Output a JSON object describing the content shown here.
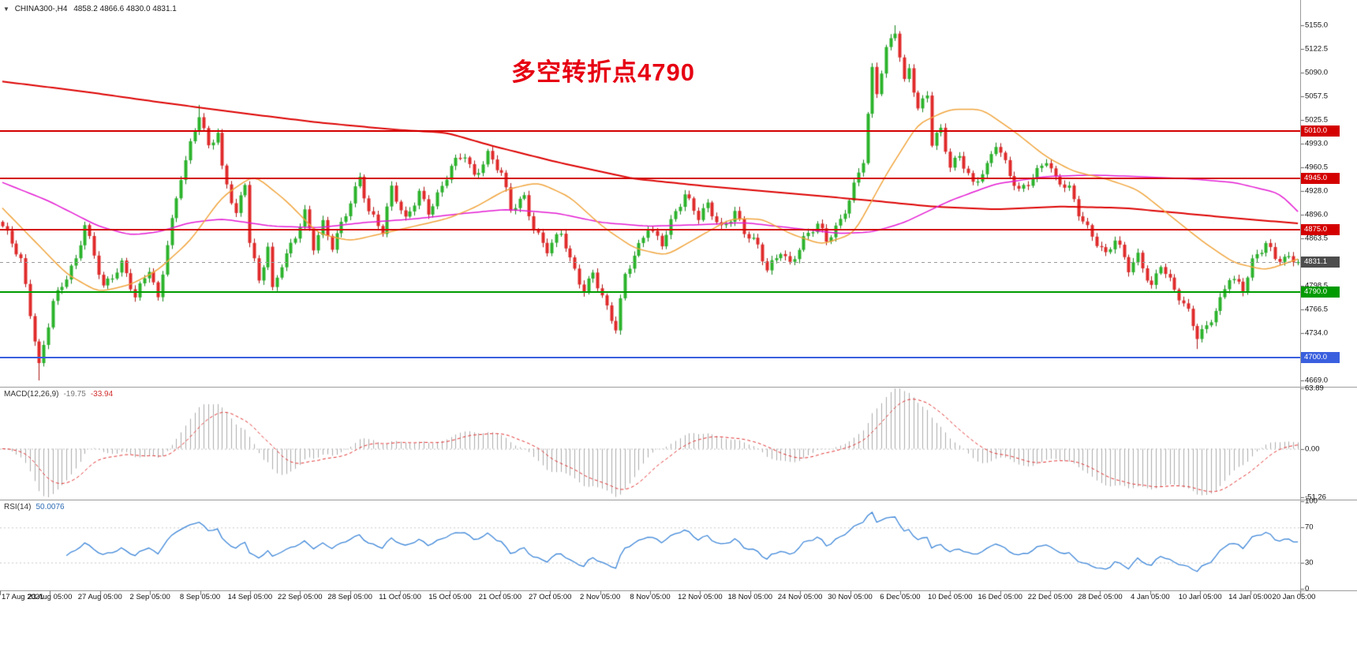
{
  "title_bar": {
    "symbol": "CHINA300-,H4",
    "ohlc": "4858.2 4866.6 4830.0 4831.1"
  },
  "icons": {
    "chart_marker": "▼"
  },
  "annotation": {
    "text": "多空转折点4790",
    "color": "#e60012"
  },
  "indicators": {
    "macd": {
      "name": "MACD(12,26,9)",
      "value_main": "-19.75",
      "value_signal": "-33.94"
    },
    "rsi": {
      "name": "RSI(14)",
      "value": "50.0076"
    }
  },
  "chart_data": {
    "type": "candlestick",
    "symbol": "CHINA300-",
    "timeframe": "H4",
    "current": {
      "open": 4858.2,
      "high": 4866.6,
      "low": 4830.0,
      "close": 4831.1
    },
    "price_axis": {
      "max": 5155.0,
      "min": 4669.0,
      "ticks": [
        "5155.0",
        "5122.5",
        "5090.0",
        "5057.5",
        "5025.5",
        "4993.0",
        "4960.5",
        "4928.0",
        "4896.0",
        "4863.5",
        "4831.0",
        "4798.5",
        "4766.5",
        "4734.0",
        "4701.5",
        "4669.0"
      ]
    },
    "levels": [
      {
        "price": 5010.0,
        "label": "5010.0",
        "color": "#d40000",
        "type": "resistance"
      },
      {
        "price": 4945.0,
        "label": "4945.0",
        "color": "#d40000",
        "type": "resistance"
      },
      {
        "price": 4875.0,
        "label": "4875.0",
        "color": "#d40000",
        "type": "resistance"
      },
      {
        "price": 4790.0,
        "label": "4790.0",
        "color": "#009b00",
        "type": "support"
      },
      {
        "price": 4700.0,
        "label": "4700.0",
        "color": "#3a5fde",
        "type": "support"
      }
    ],
    "current_price": {
      "value": 4831.1,
      "label": "4831.1",
      "badge_color": "#4d4d4d"
    },
    "candles": {
      "count": 284,
      "close_waypoints": [
        [
          0,
          4880
        ],
        [
          4,
          4830
        ],
        [
          8,
          4690
        ],
        [
          11,
          4780
        ],
        [
          16,
          4830
        ],
        [
          18,
          4880
        ],
        [
          22,
          4800
        ],
        [
          26,
          4830
        ],
        [
          29,
          4780
        ],
        [
          32,
          4820
        ],
        [
          34,
          4780
        ],
        [
          36,
          4860
        ],
        [
          39,
          4950
        ],
        [
          43,
          5030
        ],
        [
          45,
          4985
        ],
        [
          47,
          5010
        ],
        [
          48,
          4960
        ],
        [
          51,
          4900
        ],
        [
          53,
          4940
        ],
        [
          54,
          4860
        ],
        [
          56,
          4800
        ],
        [
          58,
          4850
        ],
        [
          59,
          4790
        ],
        [
          61,
          4830
        ],
        [
          64,
          4870
        ],
        [
          66,
          4900
        ],
        [
          68,
          4850
        ],
        [
          70,
          4880
        ],
        [
          72,
          4850
        ],
        [
          75,
          4900
        ],
        [
          78,
          4950
        ],
        [
          80,
          4900
        ],
        [
          83,
          4870
        ],
        [
          85,
          4930
        ],
        [
          88,
          4890
        ],
        [
          91,
          4930
        ],
        [
          93,
          4900
        ],
        [
          96,
          4930
        ],
        [
          98,
          4960
        ],
        [
          101,
          4980
        ],
        [
          103,
          4950
        ],
        [
          106,
          4980
        ],
        [
          109,
          4950
        ],
        [
          111,
          4900
        ],
        [
          114,
          4920
        ],
        [
          116,
          4880
        ],
        [
          119,
          4850
        ],
        [
          122,
          4870
        ],
        [
          124,
          4830
        ],
        [
          127,
          4790
        ],
        [
          129,
          4820
        ],
        [
          132,
          4770
        ],
        [
          134,
          4740
        ],
        [
          136,
          4810
        ],
        [
          139,
          4850
        ],
        [
          141,
          4880
        ],
        [
          144,
          4860
        ],
        [
          147,
          4900
        ],
        [
          149,
          4920
        ],
        [
          152,
          4890
        ],
        [
          154,
          4910
        ],
        [
          157,
          4880
        ],
        [
          160,
          4900
        ],
        [
          162,
          4870
        ],
        [
          165,
          4850
        ],
        [
          167,
          4820
        ],
        [
          170,
          4850
        ],
        [
          172,
          4830
        ],
        [
          175,
          4860
        ],
        [
          178,
          4880
        ],
        [
          180,
          4860
        ],
        [
          183,
          4890
        ],
        [
          185,
          4920
        ],
        [
          188,
          4970
        ],
        [
          190,
          5090
        ],
        [
          191,
          5060
        ],
        [
          193,
          5120
        ],
        [
          195,
          5150
        ],
        [
          197,
          5080
        ],
        [
          198,
          5100
        ],
        [
          200,
          5040
        ],
        [
          202,
          5060
        ],
        [
          203,
          4990
        ],
        [
          205,
          5010
        ],
        [
          207,
          4960
        ],
        [
          209,
          4980
        ],
        [
          212,
          4940
        ],
        [
          215,
          4960
        ],
        [
          217,
          4990
        ],
        [
          220,
          4950
        ],
        [
          222,
          4930
        ],
        [
          225,
          4950
        ],
        [
          228,
          4970
        ],
        [
          230,
          4940
        ],
        [
          233,
          4930
        ],
        [
          235,
          4900
        ],
        [
          238,
          4870
        ],
        [
          241,
          4840
        ],
        [
          243,
          4860
        ],
        [
          246,
          4820
        ],
        [
          248,
          4840
        ],
        [
          251,
          4800
        ],
        [
          253,
          4830
        ],
        [
          256,
          4790
        ],
        [
          259,
          4760
        ],
        [
          261,
          4730
        ],
        [
          263,
          4745
        ],
        [
          266,
          4780
        ],
        [
          268,
          4810
        ],
        [
          271,
          4790
        ],
        [
          273,
          4830
        ],
        [
          276,
          4860
        ],
        [
          278,
          4840
        ],
        [
          281,
          4835
        ],
        [
          283,
          4831.1
        ]
      ],
      "spikes": [
        {
          "index": 8,
          "low": 4669.0
        },
        {
          "index": 43,
          "high": 5046.0
        },
        {
          "index": 195,
          "high": 5155.0
        },
        {
          "index": 261,
          "low": 4712.0
        }
      ]
    },
    "moving_averages": [
      {
        "name": "ma-slow",
        "color": "#dd0000",
        "width": 2,
        "points": [
          [
            0,
            5078
          ],
          [
            17,
            5065
          ],
          [
            34,
            5050
          ],
          [
            52,
            5035
          ],
          [
            69,
            5022
          ],
          [
            86,
            5012
          ],
          [
            97,
            5008
          ],
          [
            107,
            4990
          ],
          [
            121,
            4968
          ],
          [
            138,
            4945
          ],
          [
            155,
            4934
          ],
          [
            172,
            4925
          ],
          [
            190,
            4915
          ],
          [
            203,
            4907
          ],
          [
            217,
            4903
          ],
          [
            231,
            4907
          ],
          [
            245,
            4905
          ],
          [
            259,
            4897
          ],
          [
            271,
            4890
          ],
          [
            283,
            4884
          ]
        ]
      },
      {
        "name": "ma-mid",
        "color": "#e31ad2",
        "width": 1.5,
        "points": [
          [
            0,
            4940
          ],
          [
            10,
            4915
          ],
          [
            21,
            4880
          ],
          [
            28,
            4868
          ],
          [
            34,
            4872
          ],
          [
            41,
            4885
          ],
          [
            48,
            4890
          ],
          [
            59,
            4880
          ],
          [
            69,
            4878
          ],
          [
            79,
            4885
          ],
          [
            90,
            4890
          ],
          [
            100,
            4897
          ],
          [
            110,
            4903
          ],
          [
            121,
            4898
          ],
          [
            131,
            4885
          ],
          [
            141,
            4880
          ],
          [
            152,
            4882
          ],
          [
            162,
            4885
          ],
          [
            172,
            4878
          ],
          [
            183,
            4870
          ],
          [
            190,
            4872
          ],
          [
            197,
            4885
          ],
          [
            207,
            4915
          ],
          [
            217,
            4938
          ],
          [
            228,
            4948
          ],
          [
            238,
            4950
          ],
          [
            248,
            4948
          ],
          [
            259,
            4945
          ],
          [
            269,
            4940
          ],
          [
            279,
            4925
          ],
          [
            283,
            4900
          ]
        ]
      },
      {
        "name": "ma-fast",
        "color": "#f0a43c",
        "width": 1.5,
        "points": [
          [
            0,
            4905
          ],
          [
            7,
            4860
          ],
          [
            14,
            4815
          ],
          [
            21,
            4790
          ],
          [
            28,
            4800
          ],
          [
            34,
            4820
          ],
          [
            41,
            4860
          ],
          [
            48,
            4920
          ],
          [
            55,
            4950
          ],
          [
            62,
            4915
          ],
          [
            69,
            4870
          ],
          [
            76,
            4860
          ],
          [
            83,
            4870
          ],
          [
            90,
            4880
          ],
          [
            97,
            4890
          ],
          [
            103,
            4905
          ],
          [
            110,
            4930
          ],
          [
            117,
            4940
          ],
          [
            124,
            4920
          ],
          [
            131,
            4880
          ],
          [
            138,
            4850
          ],
          [
            145,
            4840
          ],
          [
            152,
            4865
          ],
          [
            159,
            4890
          ],
          [
            166,
            4890
          ],
          [
            172,
            4870
          ],
          [
            179,
            4855
          ],
          [
            186,
            4870
          ],
          [
            193,
            4950
          ],
          [
            200,
            5020
          ],
          [
            207,
            5040
          ],
          [
            214,
            5040
          ],
          [
            221,
            5010
          ],
          [
            228,
            4975
          ],
          [
            234,
            4955
          ],
          [
            241,
            4945
          ],
          [
            248,
            4930
          ],
          [
            255,
            4895
          ],
          [
            262,
            4860
          ],
          [
            269,
            4830
          ],
          [
            276,
            4820
          ],
          [
            283,
            4835
          ]
        ]
      }
    ],
    "macd": {
      "params": "12,26,9",
      "main": -19.75,
      "signal": -33.94,
      "axis_max": 63.89,
      "axis_min": -51.26,
      "axis_ticks": [
        "63.89",
        "0.00",
        "-51.26"
      ],
      "histogram_color": "#ababab",
      "signal_color": "#e03030"
    },
    "rsi": {
      "period": 14,
      "value": 50.0076,
      "axis_ticks": [
        "100",
        "70",
        "30",
        "0"
      ],
      "guide_levels": [
        70,
        30
      ],
      "line_color": "#3d86d8"
    },
    "time_axis": {
      "labels": [
        "17 Aug 2021",
        "23 Aug 05:00",
        "27 Aug 05:00",
        "2 Sep 05:00",
        "8 Sep 05:00",
        "14 Sep 05:00",
        "22 Sep 05:00",
        "28 Sep 05:00",
        "11 Oct 05:00",
        "15 Oct 05:00",
        "21 Oct 05:00",
        "27 Oct 05:00",
        "2 Nov 05:00",
        "8 Nov 05:00",
        "12 Nov 05:00",
        "18 Nov 05:00",
        "24 Nov 05:00",
        "30 Nov 05:00",
        "6 Dec 05:00",
        "10 Dec 05:00",
        "16 Dec 05:00",
        "22 Dec 05:00",
        "28 Dec 05:00",
        "4 Jan 05:00",
        "10 Jan 05:00",
        "14 Jan 05:00",
        "20 Jan 05:00"
      ]
    }
  }
}
